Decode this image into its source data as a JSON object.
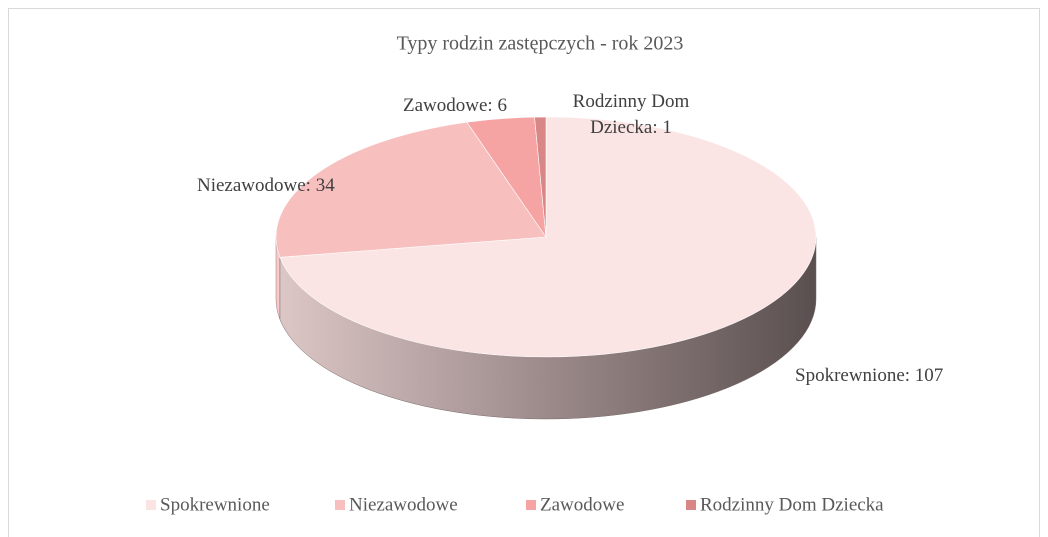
{
  "chart_data": {
    "type": "pie3d",
    "title": "Typy rodzin zastępczych - rok 2023",
    "categories": [
      "Spokrewnione",
      "Niezawodowe",
      "Zawodowe",
      "Rodzinny Dom Dziecka"
    ],
    "values": [
      107,
      34,
      6,
      1
    ],
    "value_labels": [
      "Spokrewnione: 107",
      "Niezawodowe: 34",
      "Zawodowe: 6",
      "Rodzinny Dom Dziecka: 1"
    ],
    "colors": [
      "#fbe4e4",
      "#f8bfbf",
      "#f6a3a3",
      "#d88686"
    ],
    "legend": "bottom"
  }
}
